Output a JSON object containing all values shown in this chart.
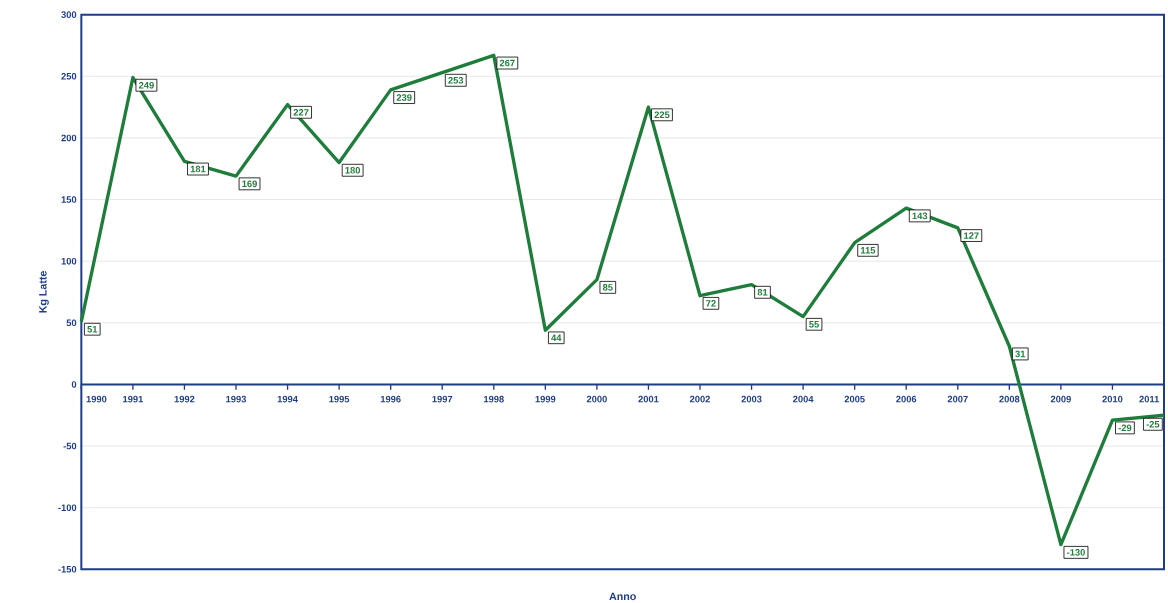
{
  "chart_data": {
    "type": "line",
    "xlabel": "Anno",
    "ylabel": "Kg Latte",
    "categories": [
      "1990",
      "1991",
      "1992",
      "1993",
      "1994",
      "1995",
      "1996",
      "1997",
      "1998",
      "1999",
      "2000",
      "2001",
      "2002",
      "2003",
      "2004",
      "2005",
      "2006",
      "2007",
      "2008",
      "2009",
      "2010",
      "2011"
    ],
    "values": [
      51,
      249,
      181,
      169,
      227,
      180,
      239,
      253,
      267,
      44,
      85,
      225,
      72,
      81,
      55,
      115,
      143,
      127,
      31,
      -130,
      -29,
      -25
    ],
    "color": "#1e7d3a",
    "ylim": [
      -150,
      300
    ],
    "yticks": [
      -150,
      -100,
      -50,
      0,
      50,
      100,
      150,
      200,
      250,
      300
    ],
    "grid": "y",
    "data_labels": true,
    "marker": "none",
    "line_style": "solid"
  }
}
